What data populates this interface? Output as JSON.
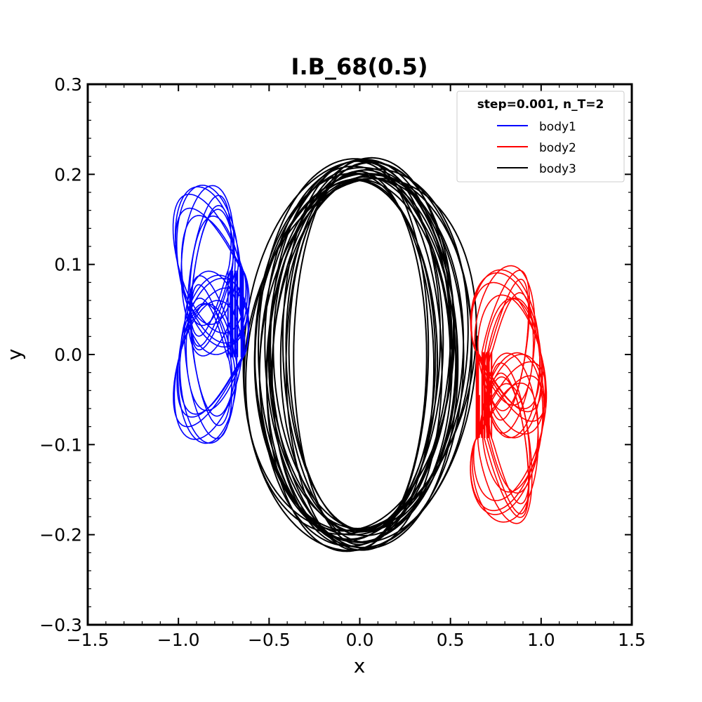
{
  "chart_data": {
    "type": "line",
    "title": "I.B_68(0.5)",
    "xlabel": "x",
    "ylabel": "y",
    "xlim": [
      -1.5,
      1.5
    ],
    "ylim": [
      -0.3,
      0.3
    ],
    "x_ticks": [
      -1.5,
      -1.0,
      -0.5,
      0.0,
      0.5,
      1.0,
      1.5
    ],
    "x_tick_labels": [
      "−1.5",
      "−1.0",
      "−0.5",
      "0.0",
      "0.5",
      "1.0",
      "1.5"
    ],
    "y_ticks": [
      -0.3,
      -0.2,
      -0.1,
      0.0,
      0.1,
      0.2,
      0.3
    ],
    "y_tick_labels": [
      "−0.3",
      "−0.2",
      "−0.1",
      "0.0",
      "0.1",
      "0.2",
      "0.3"
    ],
    "grid": false,
    "legend": {
      "title": "step=0.001, n_T=2",
      "placement": "top-right"
    },
    "series": [
      {
        "name": "body1",
        "color": "#0000ff",
        "description_x_range": [
          -1.05,
          -0.55
        ],
        "description_y_range": [
          -0.13,
          0.215
        ]
      },
      {
        "name": "body2",
        "color": "#ff0000",
        "description_x_range": [
          0.55,
          1.05
        ],
        "description_y_range": [
          -0.215,
          0.13
        ]
      },
      {
        "name": "body3",
        "color": "#000000",
        "description_x_range": [
          -0.7,
          0.7
        ],
        "description_y_range": [
          -0.222,
          0.222
        ]
      }
    ]
  }
}
